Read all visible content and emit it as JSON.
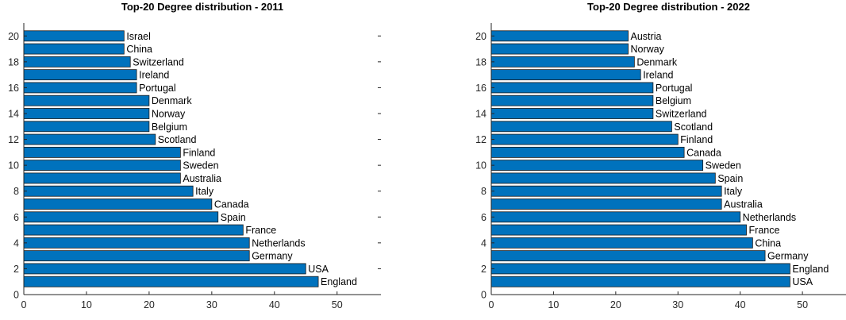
{
  "chart_data": [
    {
      "type": "bar",
      "orientation": "horizontal",
      "title": "Top-20 Degree distribution - 2011",
      "categories": [
        "England",
        "USA",
        "Germany",
        "Netherlands",
        "France",
        "Spain",
        "Canada",
        "Italy",
        "Australia",
        "Sweden",
        "Finland",
        "Scotland",
        "Belgium",
        "Norway",
        "Denmark",
        "Portugal",
        "Ireland",
        "Switzerland",
        "China",
        "Israel"
      ],
      "values": [
        47,
        45,
        36,
        36,
        35,
        31,
        30,
        27,
        25,
        25,
        25,
        21,
        20,
        20,
        20,
        18,
        18,
        17,
        16,
        16
      ],
      "xlim": [
        0,
        57
      ],
      "ylim": [
        0,
        21
      ],
      "xticks": [
        0,
        10,
        20,
        30,
        40,
        50
      ],
      "yticks": [
        0,
        2,
        4,
        6,
        8,
        10,
        12,
        14,
        16,
        18,
        20
      ],
      "bar_color": "#0072BD",
      "grid": false
    },
    {
      "type": "bar",
      "orientation": "horizontal",
      "title": "Top-20 Degree distribution - 2022",
      "categories": [
        "USA",
        "England",
        "Germany",
        "China",
        "France",
        "Netherlands",
        "Australia",
        "Italy",
        "Spain",
        "Sweden",
        "Canada",
        "Finland",
        "Scotland",
        "Switzerland",
        "Belgium",
        "Portugal",
        "Ireland",
        "Denmark",
        "Norway",
        "Austria"
      ],
      "values": [
        48,
        48,
        44,
        42,
        41,
        40,
        37,
        37,
        36,
        34,
        31,
        30,
        29,
        26,
        26,
        26,
        24,
        23,
        22,
        22
      ],
      "xlim": [
        0,
        57
      ],
      "ylim": [
        0,
        21
      ],
      "xticks": [
        0,
        10,
        20,
        30,
        40,
        50
      ],
      "yticks": [
        0,
        2,
        4,
        6,
        8,
        10,
        12,
        14,
        16,
        18,
        20
      ],
      "bar_color": "#0072BD",
      "grid": false
    }
  ]
}
